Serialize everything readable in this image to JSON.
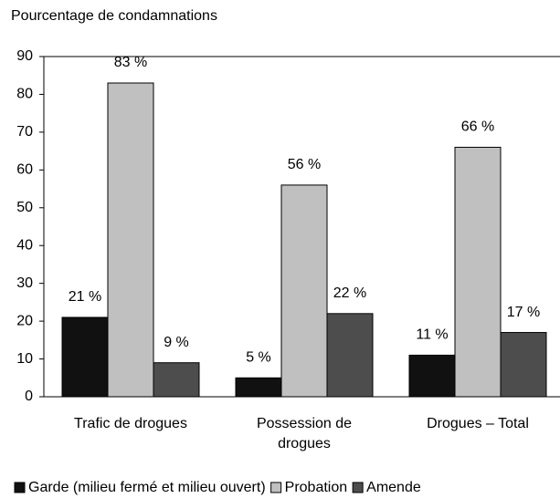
{
  "chart_data": {
    "type": "bar",
    "title": "Pourcentage de condamnations",
    "categories": [
      "Trafic de drogues",
      "Possession de drogues",
      "Drogues – Total"
    ],
    "series": [
      {
        "name": "Garde (milieu fermé et milieu ouvert)",
        "color": "#111111",
        "values": [
          21,
          5,
          11
        ],
        "value_labels": [
          "21 %",
          "5 %",
          "11 %"
        ]
      },
      {
        "name": "Probation",
        "color": "#c0c0c0",
        "values": [
          83,
          56,
          66
        ],
        "value_labels": [
          "83 %",
          "56 %",
          "66 %"
        ]
      },
      {
        "name": "Amende",
        "color": "#4d4d4d",
        "values": [
          9,
          22,
          17
        ],
        "value_labels": [
          "9 %",
          "22 %",
          "17 %"
        ]
      }
    ],
    "ylim": [
      0,
      90
    ],
    "yticks": [
      0,
      10,
      20,
      30,
      40,
      50,
      60,
      70,
      80,
      90
    ],
    "grid": false,
    "legend": "bottom"
  }
}
